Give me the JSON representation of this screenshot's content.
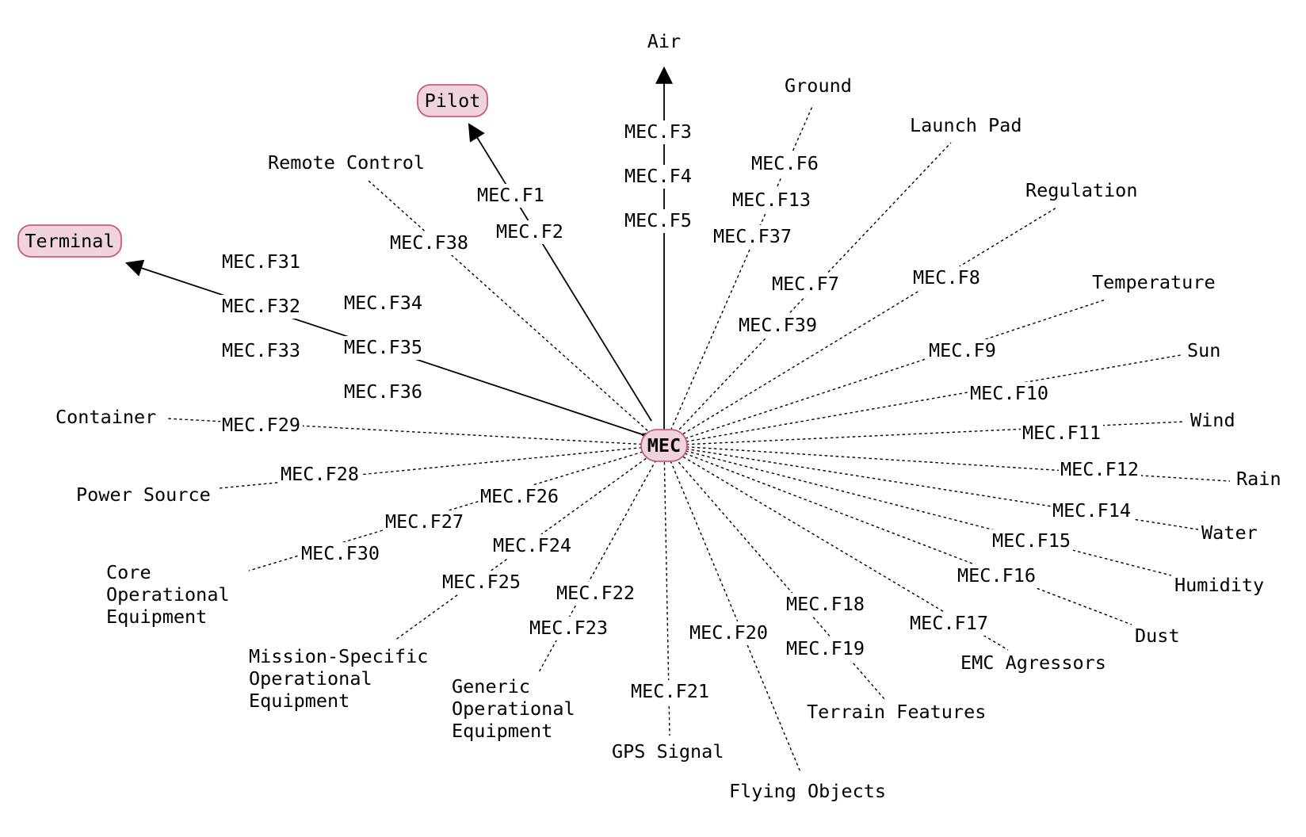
{
  "diagram": {
    "center": "MEC",
    "boxed_nodes": [
      "Pilot",
      "Terminal"
    ],
    "entities": {
      "air": "Air",
      "pilot": "Pilot",
      "terminal": "Terminal",
      "remote_control": "Remote Control",
      "ground": "Ground",
      "launch_pad": "Launch Pad",
      "regulation": "Regulation",
      "temperature": "Temperature",
      "sun": "Sun",
      "wind": "Wind",
      "rain": "Rain",
      "water": "Water",
      "humidity": "Humidity",
      "dust": "Dust",
      "emc_agressors": "EMC Agressors",
      "terrain_features": "Terrain Features",
      "flying_objects": "Flying Objects",
      "gps_signal": "GPS Signal",
      "generic_operational_equipment": [
        "Generic",
        "Operational",
        "Equipment"
      ],
      "mission_specific_operational_equipment": [
        "Mission-Specific",
        "Operational",
        "Equipment"
      ],
      "core_operational_equipment": [
        "Core",
        "Operational",
        "Equipment"
      ],
      "power_source": "Power Source",
      "container": "Container"
    },
    "functions": {
      "f1": "MEC.F1",
      "f2": "MEC.F2",
      "f3": "MEC.F3",
      "f4": "MEC.F4",
      "f5": "MEC.F5",
      "f6": "MEC.F6",
      "f7": "MEC.F7",
      "f8": "MEC.F8",
      "f9": "MEC.F9",
      "f10": "MEC.F10",
      "f11": "MEC.F11",
      "f12": "MEC.F12",
      "f13": "MEC.F13",
      "f14": "MEC.F14",
      "f15": "MEC.F15",
      "f16": "MEC.F16",
      "f17": "MEC.F17",
      "f18": "MEC.F18",
      "f19": "MEC.F19",
      "f20": "MEC.F20",
      "f21": "MEC.F21",
      "f22": "MEC.F22",
      "f23": "MEC.F23",
      "f24": "MEC.F24",
      "f25": "MEC.F25",
      "f26": "MEC.F26",
      "f27": "MEC.F27",
      "f28": "MEC.F28",
      "f29": "MEC.F29",
      "f30": "MEC.F30",
      "f31": "MEC.F31",
      "f32": "MEC.F32",
      "f33": "MEC.F33",
      "f34": "MEC.F34",
      "f35": "MEC.F35",
      "f36": "MEC.F36",
      "f37": "MEC.F37",
      "f38": "MEC.F38",
      "f39": "MEC.F39"
    },
    "links": [
      {
        "from": "MEC",
        "to": "air",
        "style": "solid",
        "arrow": true,
        "functions": [
          "f3",
          "f4",
          "f5"
        ]
      },
      {
        "from": "MEC",
        "to": "pilot",
        "style": "solid",
        "arrow": true,
        "functions": [
          "f1",
          "f2"
        ]
      },
      {
        "from": "terminal",
        "to": "MEC",
        "style": "solid",
        "arrow": "both",
        "functions": [
          "f31",
          "f32",
          "f33",
          "f34",
          "f35",
          "f36"
        ]
      },
      {
        "from": "MEC",
        "to": "remote_control",
        "style": "dashed",
        "functions": [
          "f38"
        ]
      },
      {
        "from": "MEC",
        "to": "ground",
        "style": "dashed",
        "functions": [
          "f37",
          "f13",
          "f6"
        ]
      },
      {
        "from": "MEC",
        "to": "launch_pad",
        "style": "dashed",
        "functions": [
          "f39",
          "f7"
        ]
      },
      {
        "from": "MEC",
        "to": "regulation",
        "style": "dashed",
        "functions": [
          "f8"
        ]
      },
      {
        "from": "MEC",
        "to": "temperature",
        "style": "dashed",
        "functions": [
          "f9"
        ]
      },
      {
        "from": "MEC",
        "to": "sun",
        "style": "dashed",
        "functions": [
          "f10"
        ]
      },
      {
        "from": "MEC",
        "to": "wind",
        "style": "dashed",
        "functions": [
          "f11"
        ]
      },
      {
        "from": "MEC",
        "to": "rain",
        "style": "dashed",
        "functions": [
          "f12"
        ]
      },
      {
        "from": "MEC",
        "to": "water",
        "style": "dashed",
        "functions": [
          "f14"
        ]
      },
      {
        "from": "MEC",
        "to": "humidity",
        "style": "dashed",
        "functions": [
          "f15"
        ]
      },
      {
        "from": "MEC",
        "to": "dust",
        "style": "dashed",
        "functions": [
          "f16"
        ]
      },
      {
        "from": "MEC",
        "to": "emc_agressors",
        "style": "dashed",
        "functions": [
          "f17"
        ]
      },
      {
        "from": "MEC",
        "to": "terrain_features",
        "style": "dashed",
        "functions": [
          "f18",
          "f19"
        ]
      },
      {
        "from": "MEC",
        "to": "flying_objects",
        "style": "dashed",
        "functions": [
          "f20"
        ]
      },
      {
        "from": "MEC",
        "to": "gps_signal",
        "style": "dashed",
        "functions": [
          "f21"
        ]
      },
      {
        "from": "MEC",
        "to": "generic_operational_equipment",
        "style": "dashed",
        "functions": [
          "f22",
          "f23"
        ]
      },
      {
        "from": "MEC",
        "to": "mission_specific_operational_equipment",
        "style": "dashed",
        "functions": [
          "f24",
          "f25"
        ]
      },
      {
        "from": "MEC",
        "to": "core_operational_equipment",
        "style": "dashed",
        "functions": [
          "f26",
          "f27",
          "f30"
        ]
      },
      {
        "from": "MEC",
        "to": "power_source",
        "style": "dashed",
        "functions": [
          "f28"
        ]
      },
      {
        "from": "MEC",
        "to": "container",
        "style": "dashed",
        "functions": [
          "f29"
        ]
      }
    ]
  }
}
